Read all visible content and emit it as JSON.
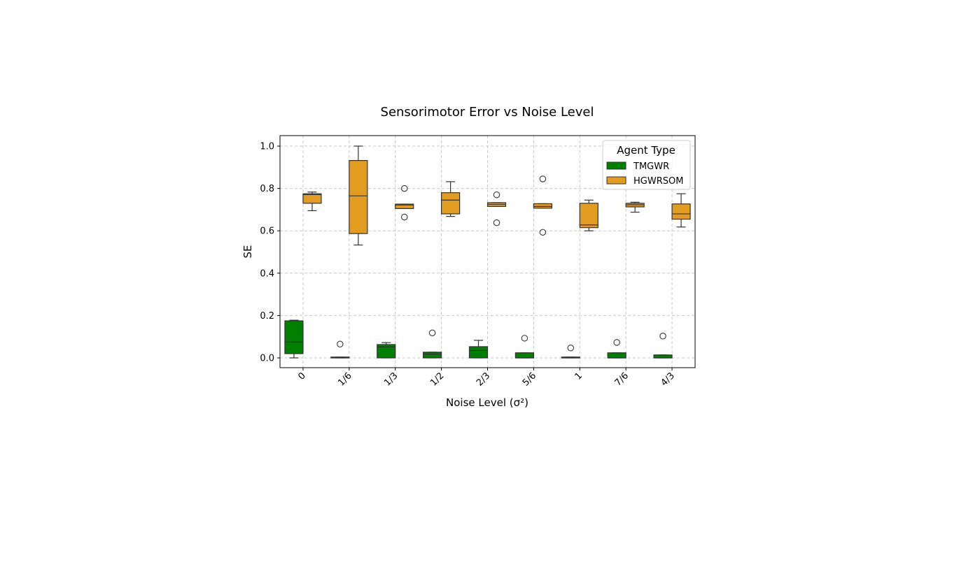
{
  "chart_data": {
    "type": "box",
    "title": "Sensorimotor Error vs Noise Level",
    "xlabel": "Noise Level (σ²)",
    "ylabel": "SE",
    "categories": [
      "0",
      "1/6",
      "1/3",
      "1/2",
      "2/3",
      "5/6",
      "1",
      "7/6",
      "4/3"
    ],
    "ylim": [
      -0.05,
      1.05
    ],
    "yticks": [
      0.0,
      0.2,
      0.4,
      0.6,
      0.8,
      1.0
    ],
    "ytick_labels": [
      "0.0",
      "0.2",
      "0.4",
      "0.6",
      "0.8",
      "1.0"
    ],
    "grid": true,
    "legend": {
      "title": "Agent Type",
      "placement": "top-right"
    },
    "series": [
      {
        "name": "TMGWR",
        "color": "#008000",
        "boxes": [
          {
            "whislo": 0.0,
            "q1": 0.02,
            "med": 0.075,
            "q3": 0.175,
            "whishi": 0.178,
            "fliers": []
          },
          {
            "whislo": 0.0,
            "q1": 0.0,
            "med": 0.0,
            "q3": 0.004,
            "whishi": 0.004,
            "fliers": [
              0.065
            ]
          },
          {
            "whislo": 0.0,
            "q1": 0.0,
            "med": 0.052,
            "q3": 0.063,
            "whishi": 0.072,
            "fliers": []
          },
          {
            "whislo": 0.0,
            "q1": 0.0,
            "med": 0.018,
            "q3": 0.027,
            "whishi": 0.027,
            "fliers": [
              0.118
            ]
          },
          {
            "whislo": 0.0,
            "q1": 0.0,
            "med": 0.035,
            "q3": 0.053,
            "whishi": 0.083,
            "fliers": []
          },
          {
            "whislo": 0.0,
            "q1": 0.0,
            "med": 0.0,
            "q3": 0.024,
            "whishi": 0.024,
            "fliers": [
              0.093
            ]
          },
          {
            "whislo": 0.0,
            "q1": 0.0,
            "med": 0.0,
            "q3": 0.004,
            "whishi": 0.004,
            "fliers": [
              0.047
            ]
          },
          {
            "whislo": 0.0,
            "q1": 0.0,
            "med": 0.0,
            "q3": 0.024,
            "whishi": 0.024,
            "fliers": [
              0.073
            ]
          },
          {
            "whislo": 0.0,
            "q1": 0.0,
            "med": 0.0,
            "q3": 0.014,
            "whishi": 0.014,
            "fliers": [
              0.103
            ]
          }
        ]
      },
      {
        "name": "HGWRSOM",
        "color": "#e29d20",
        "boxes": [
          {
            "whislo": 0.695,
            "q1": 0.73,
            "med": 0.771,
            "q3": 0.775,
            "whishi": 0.783,
            "fliers": []
          },
          {
            "whislo": 0.533,
            "q1": 0.587,
            "med": 0.765,
            "q3": 0.932,
            "whishi": 1.0,
            "fliers": []
          },
          {
            "whislo": 0.705,
            "q1": 0.705,
            "med": 0.722,
            "q3": 0.726,
            "whishi": 0.726,
            "fliers": [
              0.8,
              0.665
            ]
          },
          {
            "whislo": 0.668,
            "q1": 0.68,
            "med": 0.745,
            "q3": 0.78,
            "whishi": 0.832,
            "fliers": []
          },
          {
            "whislo": 0.715,
            "q1": 0.715,
            "med": 0.725,
            "q3": 0.733,
            "whishi": 0.733,
            "fliers": [
              0.77,
              0.638
            ]
          },
          {
            "whislo": 0.707,
            "q1": 0.707,
            "med": 0.715,
            "q3": 0.728,
            "whishi": 0.728,
            "fliers": [
              0.845,
              0.593
            ]
          },
          {
            "whislo": 0.6,
            "q1": 0.615,
            "med": 0.628,
            "q3": 0.73,
            "whishi": 0.745,
            "fliers": []
          },
          {
            "whislo": 0.688,
            "q1": 0.713,
            "med": 0.723,
            "q3": 0.73,
            "whishi": 0.735,
            "fliers": []
          },
          {
            "whislo": 0.618,
            "q1": 0.655,
            "med": 0.68,
            "q3": 0.727,
            "whishi": 0.775,
            "fliers": []
          }
        ]
      }
    ]
  }
}
